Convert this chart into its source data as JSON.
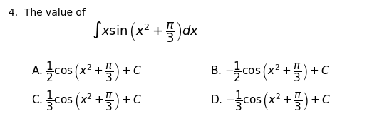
{
  "title_num": "4.",
  "title_text": "The value of",
  "integral": "$\\int x \\sin \\left(x^2 + \\dfrac{\\pi}{3}\\right) dx$",
  "optA": "A. $\\dfrac{1}{2}\\cos\\left(x^2+\\dfrac{\\pi}{3}\\right)+C$",
  "optB": "B. $-\\dfrac{1}{2}\\cos\\left(x^2+\\dfrac{\\pi}{3}\\right)+C$",
  "optC": "C. $\\dfrac{1}{3}\\cos\\left(x^2+\\dfrac{\\pi}{3}\\right)+C$",
  "optD": "D. $-\\dfrac{1}{3}\\cos\\left(x^2+\\dfrac{\\pi}{3}\\right)+C$",
  "bg_color": "#ffffff",
  "text_color": "#000000",
  "font_size_title": 10,
  "font_size_integral": 13,
  "font_size_options": 11
}
